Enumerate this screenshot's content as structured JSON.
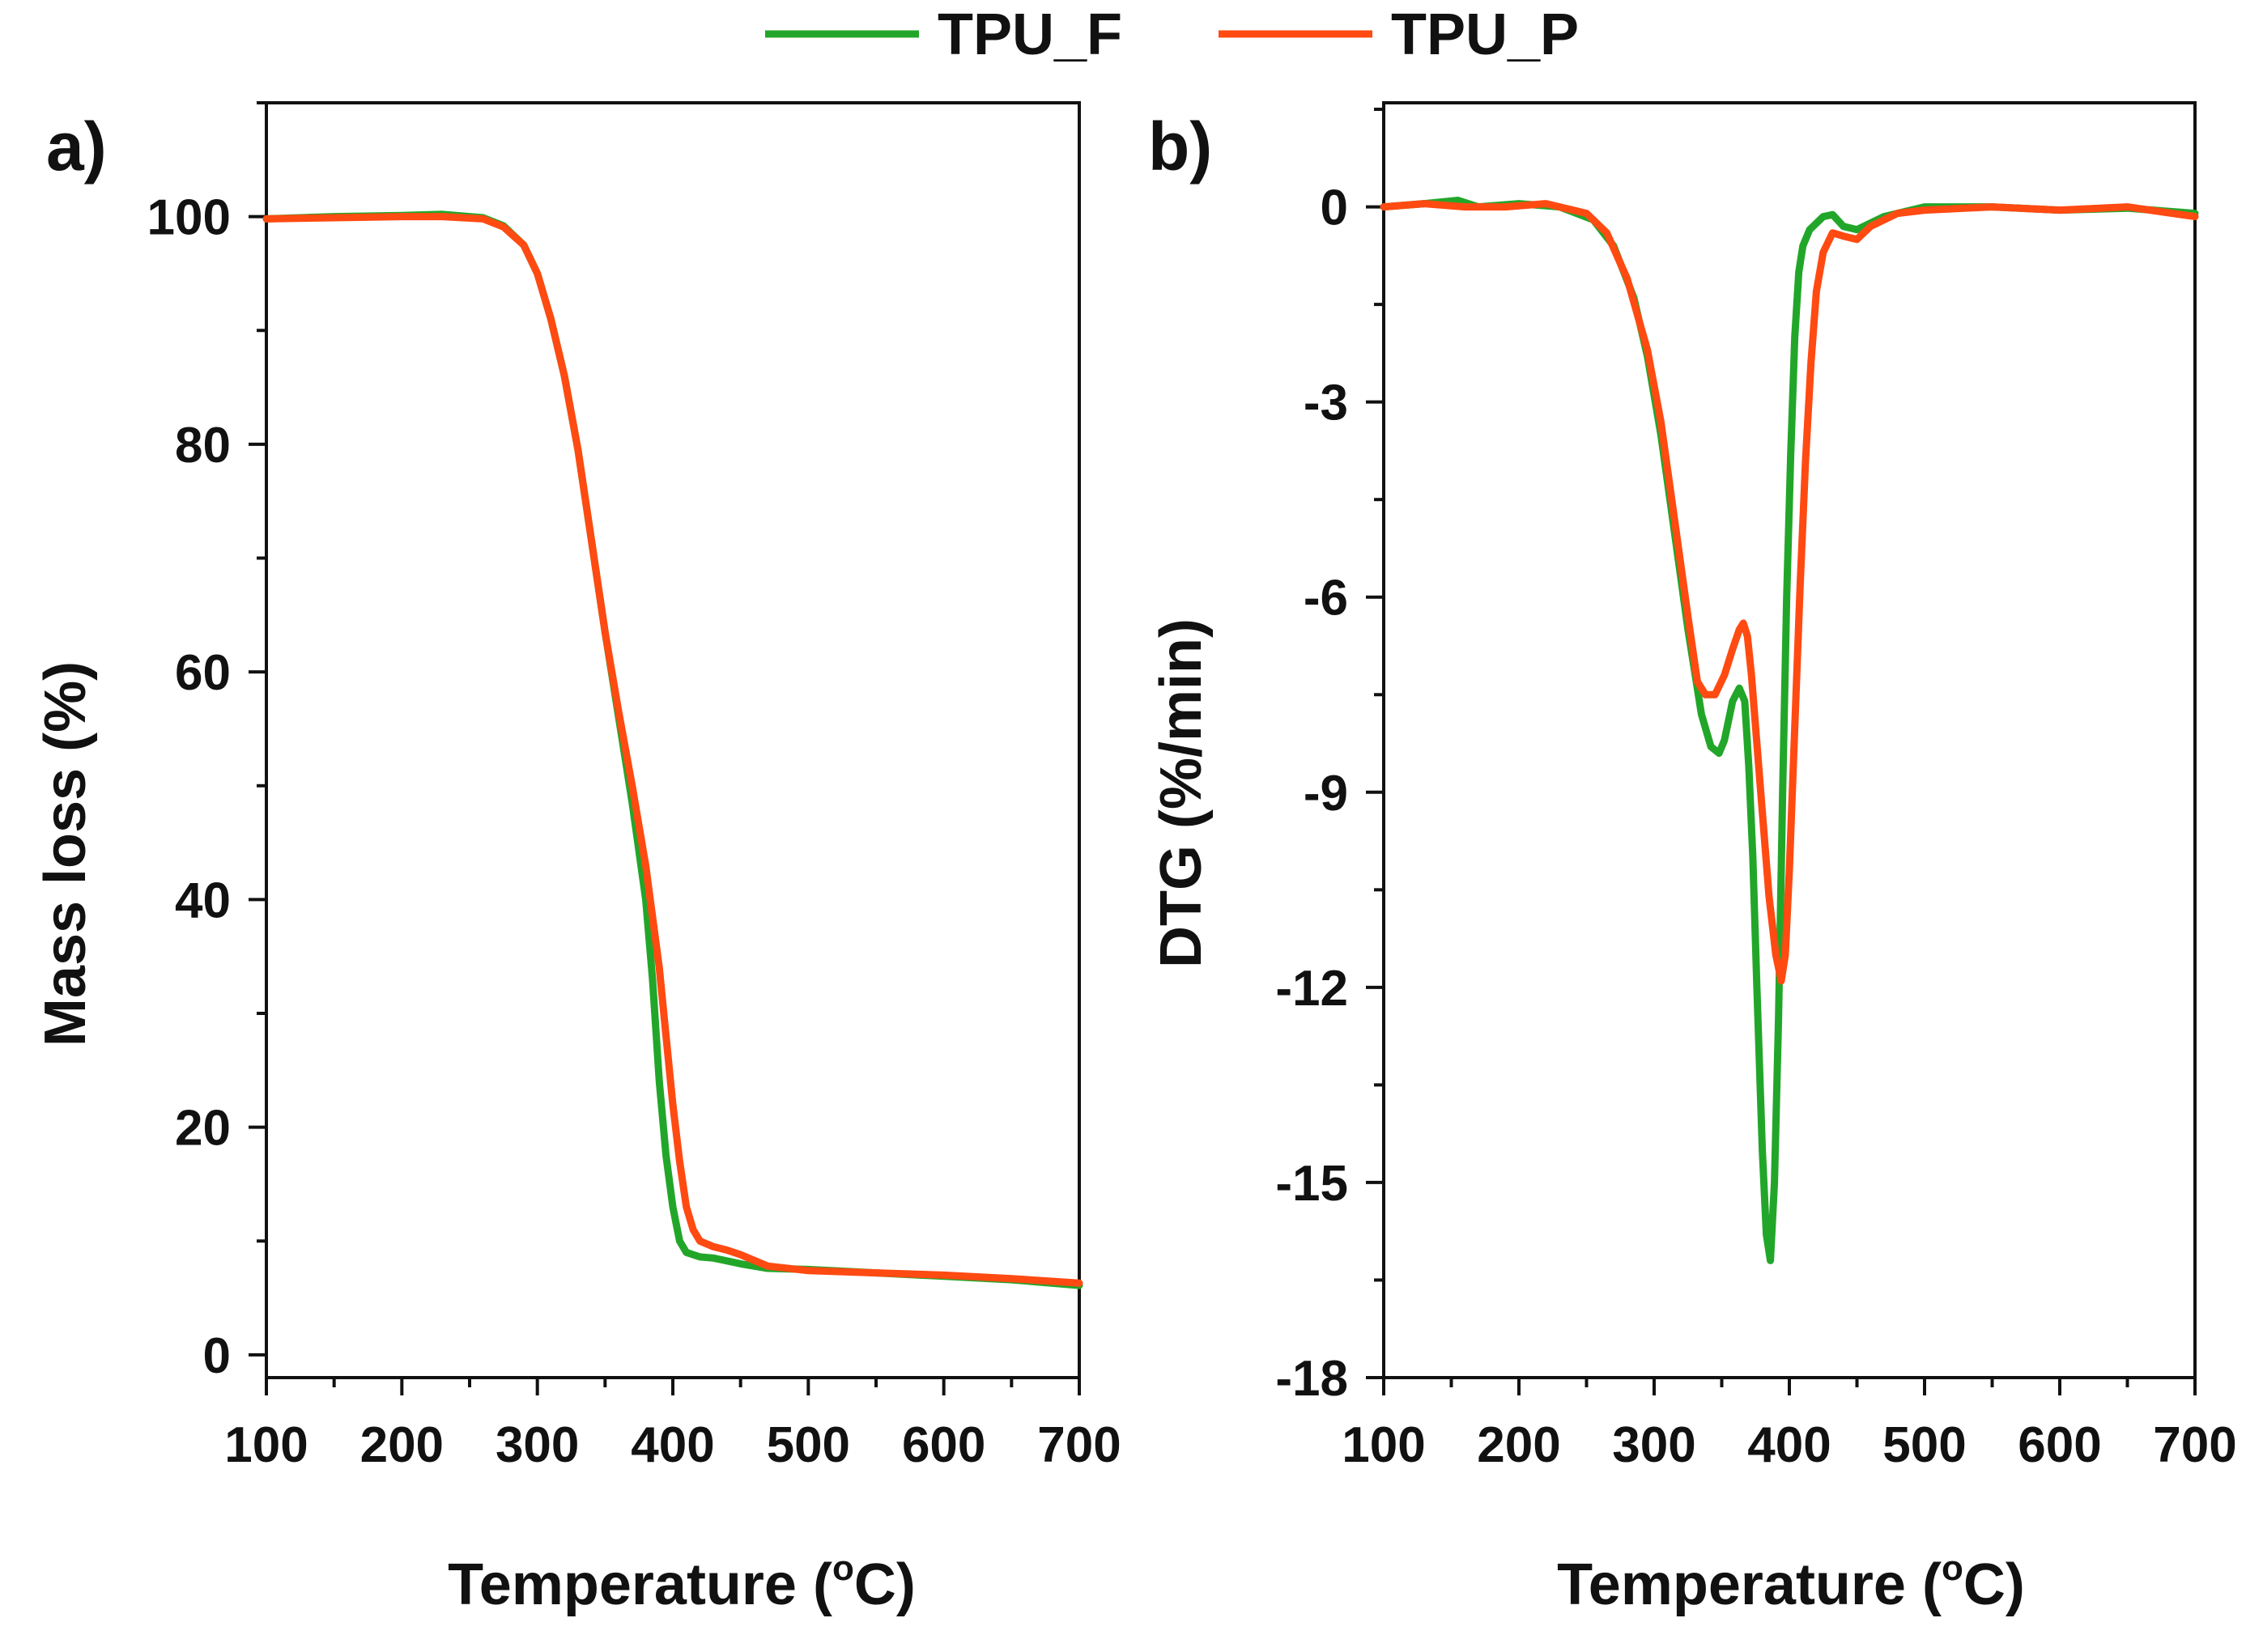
{
  "legend": {
    "items": [
      {
        "name": "TPU_F",
        "color": "#22a62a"
      },
      {
        "name": "TPU_P",
        "color": "#ff4a12"
      }
    ]
  },
  "chart_data": [
    {
      "type": "line",
      "panel_label": "a)",
      "xlabel_main": "Temperature (",
      "xlabel_sup": "o",
      "xlabel_end": "C)",
      "ylabel": "Mass loss (%)",
      "xlim": [
        100,
        700
      ],
      "ylim": [
        -2,
        110
      ],
      "xticks": [
        100,
        200,
        300,
        400,
        500,
        600,
        700
      ],
      "xtick_labels": [
        "100",
        "200",
        "300",
        "400",
        "500",
        "600",
        "700"
      ],
      "yticks": [
        0,
        20,
        40,
        60,
        80,
        100
      ],
      "ytick_labels": [
        "0",
        "20",
        "40",
        "60",
        "80",
        "100"
      ],
      "series": [
        {
          "name": "TPU_F",
          "color": "#22a62a",
          "x": [
            100,
            150,
            200,
            230,
            260,
            275,
            290,
            300,
            310,
            320,
            330,
            340,
            350,
            360,
            370,
            380,
            385,
            390,
            395,
            400,
            405,
            410,
            415,
            420,
            430,
            450,
            470,
            500,
            550,
            600,
            650,
            700
          ],
          "y": [
            99.8,
            100.0,
            100.1,
            100.2,
            99.9,
            99.2,
            97.5,
            95.0,
            91.0,
            86.0,
            79.5,
            71.5,
            63.5,
            56.0,
            48.5,
            40.0,
            33.0,
            24.0,
            17.5,
            13.0,
            10.0,
            9.0,
            8.8,
            8.6,
            8.5,
            8.0,
            7.6,
            7.5,
            7.2,
            6.9,
            6.6,
            6.1
          ]
        },
        {
          "name": "TPU_P",
          "color": "#ff4a12",
          "x": [
            100,
            150,
            200,
            230,
            260,
            275,
            290,
            300,
            310,
            320,
            330,
            340,
            350,
            360,
            370,
            380,
            390,
            395,
            400,
            405,
            410,
            415,
            420,
            430,
            440,
            450,
            470,
            500,
            550,
            600,
            650,
            700
          ],
          "y": [
            99.8,
            99.9,
            100.0,
            100.0,
            99.8,
            99.1,
            97.5,
            95.0,
            91.0,
            86.0,
            79.5,
            71.5,
            63.5,
            56.5,
            50.0,
            43.0,
            34.0,
            28.0,
            22.0,
            17.0,
            13.0,
            11.0,
            10.0,
            9.5,
            9.2,
            8.8,
            7.8,
            7.4,
            7.2,
            7.0,
            6.7,
            6.3
          ]
        }
      ]
    },
    {
      "type": "line",
      "panel_label": "b)",
      "xlabel_main": "Temperature (",
      "xlabel_sup": "o",
      "xlabel_end": "C)",
      "ylabel": "DTG (%/min)",
      "xlim": [
        100,
        700
      ],
      "ylim": [
        -18,
        1.6
      ],
      "xticks": [
        100,
        200,
        300,
        400,
        500,
        600,
        700
      ],
      "xtick_labels": [
        "100",
        "200",
        "300",
        "400",
        "500",
        "600",
        "700"
      ],
      "yticks": [
        0,
        -3,
        -6,
        -9,
        -12,
        -15,
        -18
      ],
      "ytick_labels": [
        "0",
        "-3",
        "-6",
        "-9",
        "-12",
        "-15",
        "-18"
      ],
      "series": [
        {
          "name": "TPU_F",
          "color": "#22a62a",
          "x": [
            100,
            130,
            155,
            170,
            200,
            230,
            255,
            270,
            285,
            295,
            305,
            315,
            325,
            335,
            342,
            348,
            352,
            358,
            363,
            367,
            370,
            373,
            376,
            380,
            383,
            386,
            389,
            392,
            395,
            398,
            401,
            404,
            407,
            410,
            415,
            420,
            425,
            432,
            440,
            450,
            470,
            500,
            550,
            600,
            650,
            700
          ],
          "y": [
            0.0,
            0.05,
            0.1,
            0.0,
            0.05,
            0.0,
            -0.2,
            -0.6,
            -1.4,
            -2.3,
            -3.5,
            -5.0,
            -6.5,
            -7.8,
            -8.3,
            -8.4,
            -8.2,
            -7.6,
            -7.4,
            -7.6,
            -8.6,
            -10.0,
            -12.0,
            -14.5,
            -15.8,
            -16.2,
            -15.0,
            -12.5,
            -9.0,
            -6.0,
            -3.8,
            -2.0,
            -1.0,
            -0.6,
            -0.35,
            -0.25,
            -0.15,
            -0.12,
            -0.3,
            -0.35,
            -0.15,
            0.0,
            0.0,
            -0.05,
            -0.02,
            -0.1
          ]
        },
        {
          "name": "TPU_P",
          "color": "#ff4a12",
          "x": [
            100,
            130,
            160,
            190,
            220,
            250,
            265,
            280,
            295,
            305,
            315,
            325,
            332,
            338,
            345,
            352,
            358,
            363,
            366,
            369,
            372,
            375,
            380,
            385,
            390,
            394,
            397,
            400,
            404,
            408,
            412,
            416,
            420,
            425,
            432,
            440,
            450,
            460,
            480,
            500,
            550,
            600,
            650,
            700
          ],
          "y": [
            0.0,
            0.05,
            0.0,
            0.0,
            0.05,
            -0.1,
            -0.4,
            -1.1,
            -2.2,
            -3.3,
            -4.8,
            -6.3,
            -7.3,
            -7.5,
            -7.5,
            -7.2,
            -6.8,
            -6.5,
            -6.4,
            -6.6,
            -7.2,
            -8.0,
            -9.3,
            -10.6,
            -11.5,
            -11.9,
            -11.5,
            -10.2,
            -8.0,
            -5.8,
            -3.9,
            -2.4,
            -1.3,
            -0.7,
            -0.4,
            -0.45,
            -0.5,
            -0.3,
            -0.1,
            -0.05,
            0.0,
            -0.05,
            0.0,
            -0.15
          ]
        }
      ]
    }
  ]
}
